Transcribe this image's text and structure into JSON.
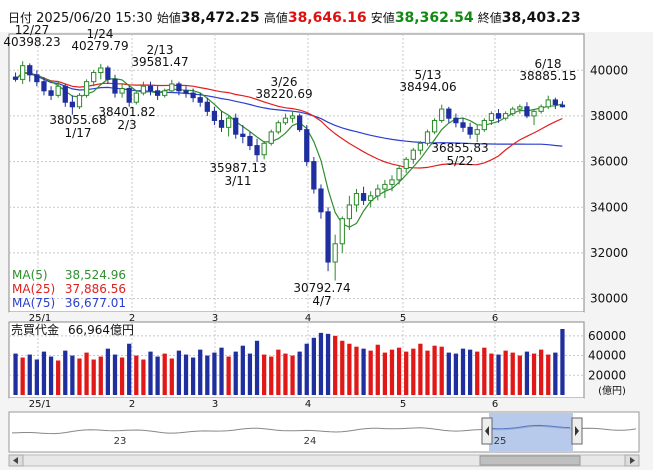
{
  "header": {
    "date_label": "日付",
    "datetime": "2025/06/20 15:30",
    "open_label": "始値",
    "open": "38,472.25",
    "high_label": "高値",
    "high": "38,646.16",
    "low_label": "安値",
    "low": "38,362.54",
    "close_label": "終値",
    "close": "38,403.23"
  },
  "price_axis": [
    "40000",
    "38000",
    "36000",
    "34000",
    "32000",
    "30000"
  ],
  "volume_axis": [
    "60000",
    "40000",
    "20000"
  ],
  "volume_unit": "(億円)",
  "month_labels": [
    "25/1",
    "2",
    "3",
    "4",
    "5",
    "6"
  ],
  "legend": {
    "ma5_label": "MA(5)",
    "ma5_value": "38,524.96",
    "ma25_label": "MA(25)",
    "ma25_value": "37,886.56",
    "ma75_label": "MA(75)",
    "ma75_value": "36,677.01"
  },
  "volume_label": "売買代金",
  "volume_value": "66,964億円",
  "annotations": [
    {
      "date": "12/27",
      "value": "40398.23"
    },
    {
      "date": "1/24",
      "value": "40279.79"
    },
    {
      "date": "2/13",
      "value": "39581.47"
    },
    {
      "date": "3/26",
      "value": "38220.69"
    },
    {
      "date": "5/13",
      "value": "38494.06"
    },
    {
      "date": "6/18",
      "value": "38885.15"
    },
    {
      "date": "1/17",
      "value": "38055.68"
    },
    {
      "date": "2/3",
      "value": "38401.82"
    },
    {
      "date": "3/11",
      "value": "35987.13"
    },
    {
      "date": "4/7",
      "value": "30792.74"
    },
    {
      "date": "5/22",
      "value": "36855.83"
    }
  ],
  "navigator": {
    "labels": [
      "23",
      "24",
      "25"
    ]
  },
  "colors": {
    "up_candle": "#2b8a2b",
    "down_candle": "#1f2f9e",
    "ma5": "#2f8f2f",
    "ma25": "#e02020",
    "ma75": "#2a3fcf",
    "vol_up": "#e01818",
    "vol_down": "#1f2f9e",
    "header_high": "#dd1111",
    "header_low": "#128a12"
  },
  "chart_data": {
    "type": "candlestick",
    "yrange": [
      29500,
      41500
    ],
    "ohlc": [
      [
        39700,
        39900,
        39500,
        39600
      ],
      [
        39600,
        40398,
        39400,
        40200
      ],
      [
        40200,
        40300,
        39500,
        39800
      ],
      [
        39800,
        40000,
        39300,
        39500
      ],
      [
        39500,
        39700,
        38900,
        39100
      ],
      [
        39100,
        39300,
        38700,
        38900
      ],
      [
        38900,
        39500,
        38800,
        39300
      ],
      [
        39300,
        39400,
        38400,
        38600
      ],
      [
        38600,
        38900,
        38055,
        38400
      ],
      [
        38400,
        39000,
        38300,
        38900
      ],
      [
        38900,
        39600,
        38800,
        39500
      ],
      [
        39500,
        40000,
        39300,
        39900
      ],
      [
        39900,
        40280,
        39600,
        40100
      ],
      [
        40100,
        40200,
        39400,
        39600
      ],
      [
        39600,
        39800,
        38800,
        39000
      ],
      [
        39000,
        39400,
        38800,
        39200
      ],
      [
        39200,
        39300,
        38402,
        38600
      ],
      [
        38600,
        39100,
        38500,
        39000
      ],
      [
        39000,
        39500,
        38900,
        39300
      ],
      [
        39300,
        39500,
        38900,
        39100
      ],
      [
        39100,
        39300,
        38700,
        38900
      ],
      [
        38900,
        39200,
        38800,
        39100
      ],
      [
        39100,
        39582,
        39000,
        39400
      ],
      [
        39400,
        39500,
        38900,
        39100
      ],
      [
        39100,
        39300,
        38800,
        39000
      ],
      [
        39000,
        39200,
        38600,
        38800
      ],
      [
        38800,
        39000,
        38400,
        38600
      ],
      [
        38600,
        38800,
        38000,
        38200
      ],
      [
        38200,
        38400,
        37600,
        37800
      ],
      [
        37800,
        38200,
        37300,
        37500
      ],
      [
        37500,
        38000,
        37100,
        37900
      ],
      [
        37900,
        38100,
        37000,
        37200
      ],
      [
        37200,
        37600,
        36800,
        37100
      ],
      [
        37100,
        37300,
        36500,
        36700
      ],
      [
        36700,
        37000,
        35987,
        36300
      ],
      [
        36300,
        36900,
        36100,
        36800
      ],
      [
        36800,
        37400,
        36700,
        37300
      ],
      [
        37300,
        37800,
        37200,
        37700
      ],
      [
        37700,
        38100,
        37600,
        37900
      ],
      [
        37900,
        38221,
        37700,
        38000
      ],
      [
        38000,
        38100,
        37300,
        37400
      ],
      [
        37400,
        37600,
        35800,
        36000
      ],
      [
        36000,
        36200,
        34600,
        34800
      ],
      [
        34800,
        35000,
        33500,
        33800
      ],
      [
        33800,
        34000,
        31200,
        31600
      ],
      [
        31600,
        32800,
        30793,
        32400
      ],
      [
        32400,
        33600,
        32000,
        33500
      ],
      [
        33500,
        34500,
        33000,
        34100
      ],
      [
        34100,
        34800,
        33800,
        34600
      ],
      [
        34600,
        34900,
        34100,
        34300
      ],
      [
        34300,
        34700,
        34000,
        34500
      ],
      [
        34500,
        35000,
        34300,
        34800
      ],
      [
        34800,
        35200,
        34400,
        35000
      ],
      [
        35000,
        35400,
        34700,
        35200
      ],
      [
        35200,
        35800,
        35000,
        35700
      ],
      [
        35700,
        36200,
        35500,
        36100
      ],
      [
        36100,
        36600,
        35900,
        36500
      ],
      [
        36500,
        36900,
        36300,
        36800
      ],
      [
        36800,
        37400,
        36700,
        37300
      ],
      [
        37300,
        37900,
        37200,
        37800
      ],
      [
        37800,
        38494,
        37700,
        38300
      ],
      [
        38300,
        38400,
        37700,
        37900
      ],
      [
        37900,
        38100,
        37500,
        37700
      ],
      [
        37700,
        37900,
        37300,
        37500
      ],
      [
        37500,
        37700,
        37000,
        37200
      ],
      [
        37200,
        37600,
        36856,
        37400
      ],
      [
        37400,
        37900,
        37300,
        37800
      ],
      [
        37800,
        38200,
        37600,
        38100
      ],
      [
        38100,
        38300,
        37700,
        37900
      ],
      [
        37900,
        38200,
        37800,
        38100
      ],
      [
        38100,
        38400,
        38000,
        38300
      ],
      [
        38300,
        38500,
        38100,
        38400
      ],
      [
        38400,
        38600,
        37900,
        38000
      ],
      [
        38000,
        38300,
        37600,
        38200
      ],
      [
        38200,
        38500,
        38100,
        38400
      ],
      [
        38400,
        38885,
        38300,
        38700
      ],
      [
        38700,
        38800,
        38300,
        38500
      ],
      [
        38472,
        38646,
        38363,
        38403
      ]
    ],
    "ma5_end": 38524.96,
    "ma25_end": 37886.56,
    "ma75_end": 36677.01,
    "volume": [
      42000,
      38000,
      41000,
      36000,
      44000,
      39000,
      35000,
      45000,
      40000,
      37000,
      43000,
      36000,
      39000,
      47000,
      41000,
      38000,
      52000,
      40000,
      36000,
      44000,
      39000,
      42000,
      37000,
      45000,
      41000,
      38000,
      46000,
      40000,
      43000,
      48000,
      39000,
      44000,
      50000,
      42000,
      55000,
      41000,
      39000,
      46000,
      42000,
      40000,
      44000,
      52000,
      58000,
      63000,
      62000,
      60000,
      55000,
      52000,
      49000,
      47000,
      45000,
      51000,
      43000,
      46000,
      48000,
      44000,
      47000,
      52000,
      45000,
      50000,
      49000,
      43000,
      42000,
      47000,
      46000,
      44000,
      48000,
      42000,
      41000,
      45000,
      43000,
      40000,
      44000,
      42000,
      46000,
      41000,
      43000,
      66964
    ],
    "volume_unit": "億円"
  }
}
